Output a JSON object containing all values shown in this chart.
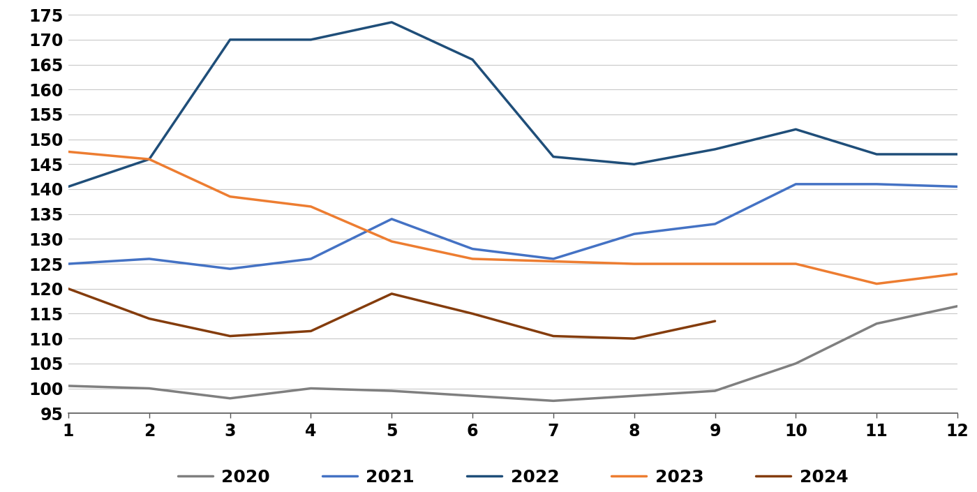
{
  "series": {
    "2020": [
      100.5,
      100.0,
      98.0,
      100.0,
      99.5,
      98.5,
      97.5,
      98.5,
      99.5,
      105.0,
      113.0,
      116.5
    ],
    "2021": [
      125.0,
      126.0,
      124.0,
      126.0,
      134.0,
      128.0,
      126.0,
      131.0,
      133.0,
      141.0,
      141.0,
      140.5
    ],
    "2022": [
      140.5,
      146.0,
      170.0,
      170.0,
      173.5,
      166.0,
      146.5,
      145.0,
      148.0,
      152.0,
      147.0,
      147.0
    ],
    "2023": [
      147.5,
      146.0,
      138.5,
      136.5,
      129.5,
      126.0,
      125.5,
      125.0,
      125.0,
      125.0,
      121.0,
      123.0
    ],
    "2024": [
      120.0,
      114.0,
      110.5,
      111.5,
      119.0,
      115.0,
      110.5,
      110.0,
      113.5,
      null,
      null,
      null
    ]
  },
  "colors": {
    "2020": "#7f7f7f",
    "2021": "#4472c4",
    "2022": "#1f4e79",
    "2023": "#ed7d31",
    "2024": "#843c0c"
  },
  "xlim": [
    1,
    12
  ],
  "ylim": [
    95,
    175
  ],
  "yticks": [
    95,
    100,
    105,
    110,
    115,
    120,
    125,
    130,
    135,
    140,
    145,
    150,
    155,
    160,
    165,
    170,
    175
  ],
  "xticks": [
    1,
    2,
    3,
    4,
    5,
    6,
    7,
    8,
    9,
    10,
    11,
    12
  ],
  "legend_order": [
    "2020",
    "2021",
    "2022",
    "2023",
    "2024"
  ],
  "line_width": 2.5
}
